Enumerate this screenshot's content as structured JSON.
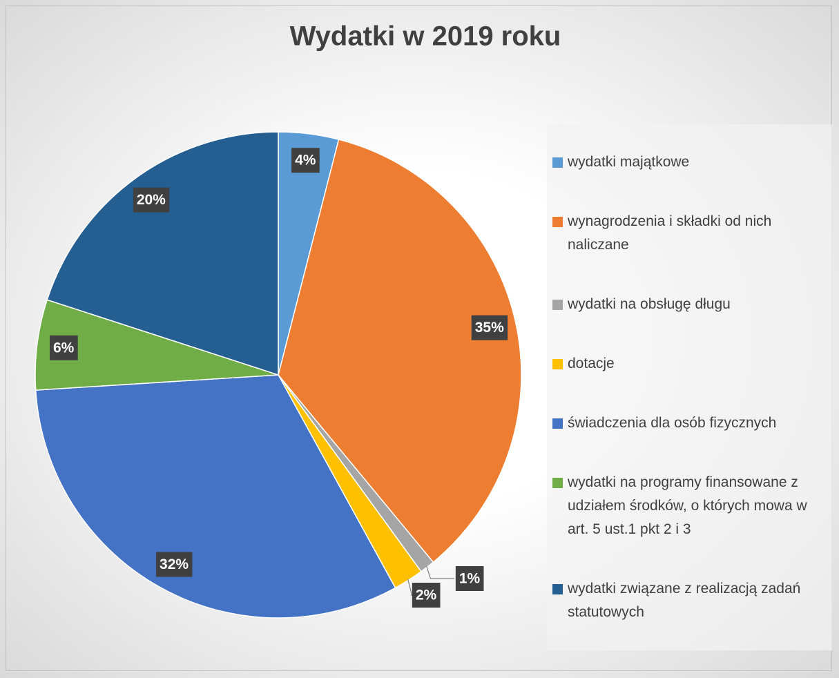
{
  "chart_data": {
    "type": "pie",
    "title": "Wydatki w 2019 roku",
    "categories": [
      "wydatki majątkowe",
      "wynagrodzenia i składki od nich naliczane",
      "wydatki na obsługę długu",
      "dotacje",
      "świadczenia dla osób fizycznych",
      "wydatki na programy finansowane z udziałem środków, o których mowa w art. 5 ust.1 pkt 2 i 3",
      "wydatki związane z realizacją zadań statutowych"
    ],
    "values": [
      4,
      35,
      1,
      2,
      32,
      6,
      20
    ],
    "value_labels": [
      "4%",
      "35%",
      "1%",
      "2%",
      "32%",
      "6%",
      "20%"
    ],
    "colors": [
      "#5b9bd5",
      "#ed7d31",
      "#a5a5a5",
      "#ffc000",
      "#4472c4",
      "#70ad47",
      "#255e91"
    ],
    "legend": "right"
  }
}
